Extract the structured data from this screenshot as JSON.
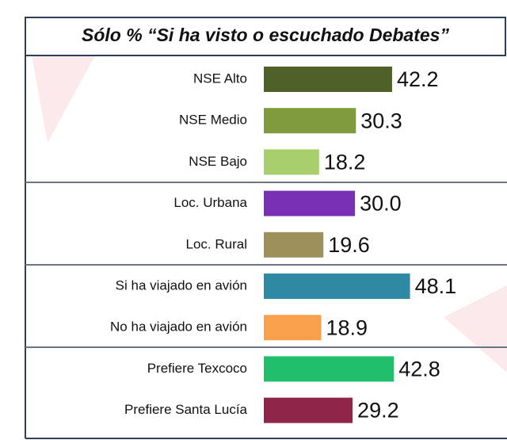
{
  "chart_data": {
    "type": "bar",
    "orientation": "horizontal",
    "title": "Sólo % “Si ha visto o escuchado Debates”",
    "categories": [
      "NSE Alto",
      "NSE Medio",
      "NSE Bajo",
      "Loc. Urbana",
      "Loc. Rural",
      "Si ha viajado en avión",
      "No ha viajado en avión",
      "Prefiere Texcoco",
      "Prefiere Santa Lucía"
    ],
    "values": [
      42.2,
      30.3,
      18.2,
      30.0,
      19.6,
      48.1,
      18.9,
      42.8,
      29.2
    ],
    "value_labels": [
      "42.2",
      "30.3",
      "18.2",
      "30.0",
      "19.6",
      "48.1",
      "18.9",
      "42.8",
      "29.2"
    ],
    "colors": [
      "#4f6029",
      "#7f9b3b",
      "#a8cf6b",
      "#7a30b4",
      "#9d905b",
      "#2f88a4",
      "#f8a04b",
      "#20bf6b",
      "#8f2548"
    ],
    "xlim": [
      0,
      80
    ]
  }
}
